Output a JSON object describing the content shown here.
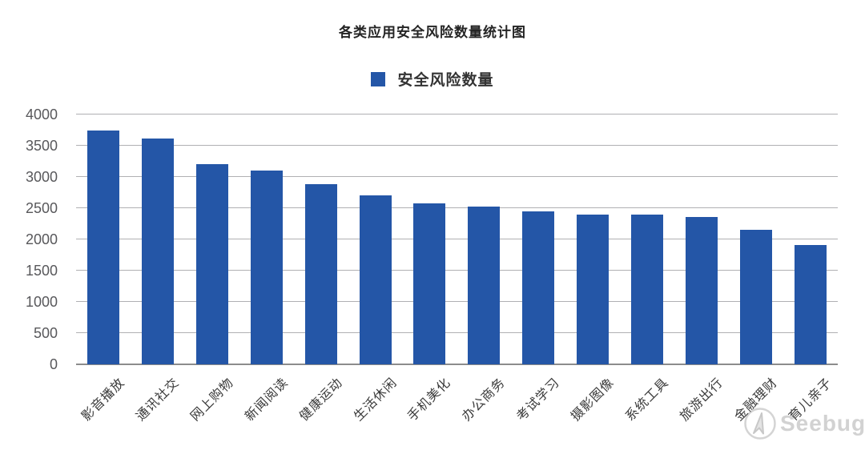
{
  "title": "各类应用安全风险数量统计图",
  "legend": {
    "label": "安全风险数量",
    "swatch_color": "#2456A7"
  },
  "watermark": {
    "text": "Seebug",
    "icon": "paper-plane-logo-icon"
  },
  "chart_data": {
    "type": "bar",
    "title": "各类应用安全风险数量统计图",
    "series_name": "安全风险数量",
    "categories": [
      "影音播放",
      "通讯社交",
      "网上购物",
      "新闻阅读",
      "健康运动",
      "生活休闲",
      "手机美化",
      "办公商务",
      "考试学习",
      "摄影图像",
      "系统工具",
      "旅游出行",
      "金融理财",
      "育儿亲子"
    ],
    "values": [
      3750,
      3610,
      3200,
      3100,
      2880,
      2700,
      2580,
      2530,
      2450,
      2400,
      2400,
      2360,
      2150,
      1910
    ],
    "xlabel": "",
    "ylabel": "",
    "ylim": [
      0,
      4000
    ],
    "yticks": [
      0,
      500,
      1000,
      1500,
      2000,
      2500,
      3000,
      3500,
      4000
    ],
    "grid": true,
    "legend_position": "top-center",
    "bar_color": "#2456A7",
    "gridline_color": "#b0b0b3"
  }
}
